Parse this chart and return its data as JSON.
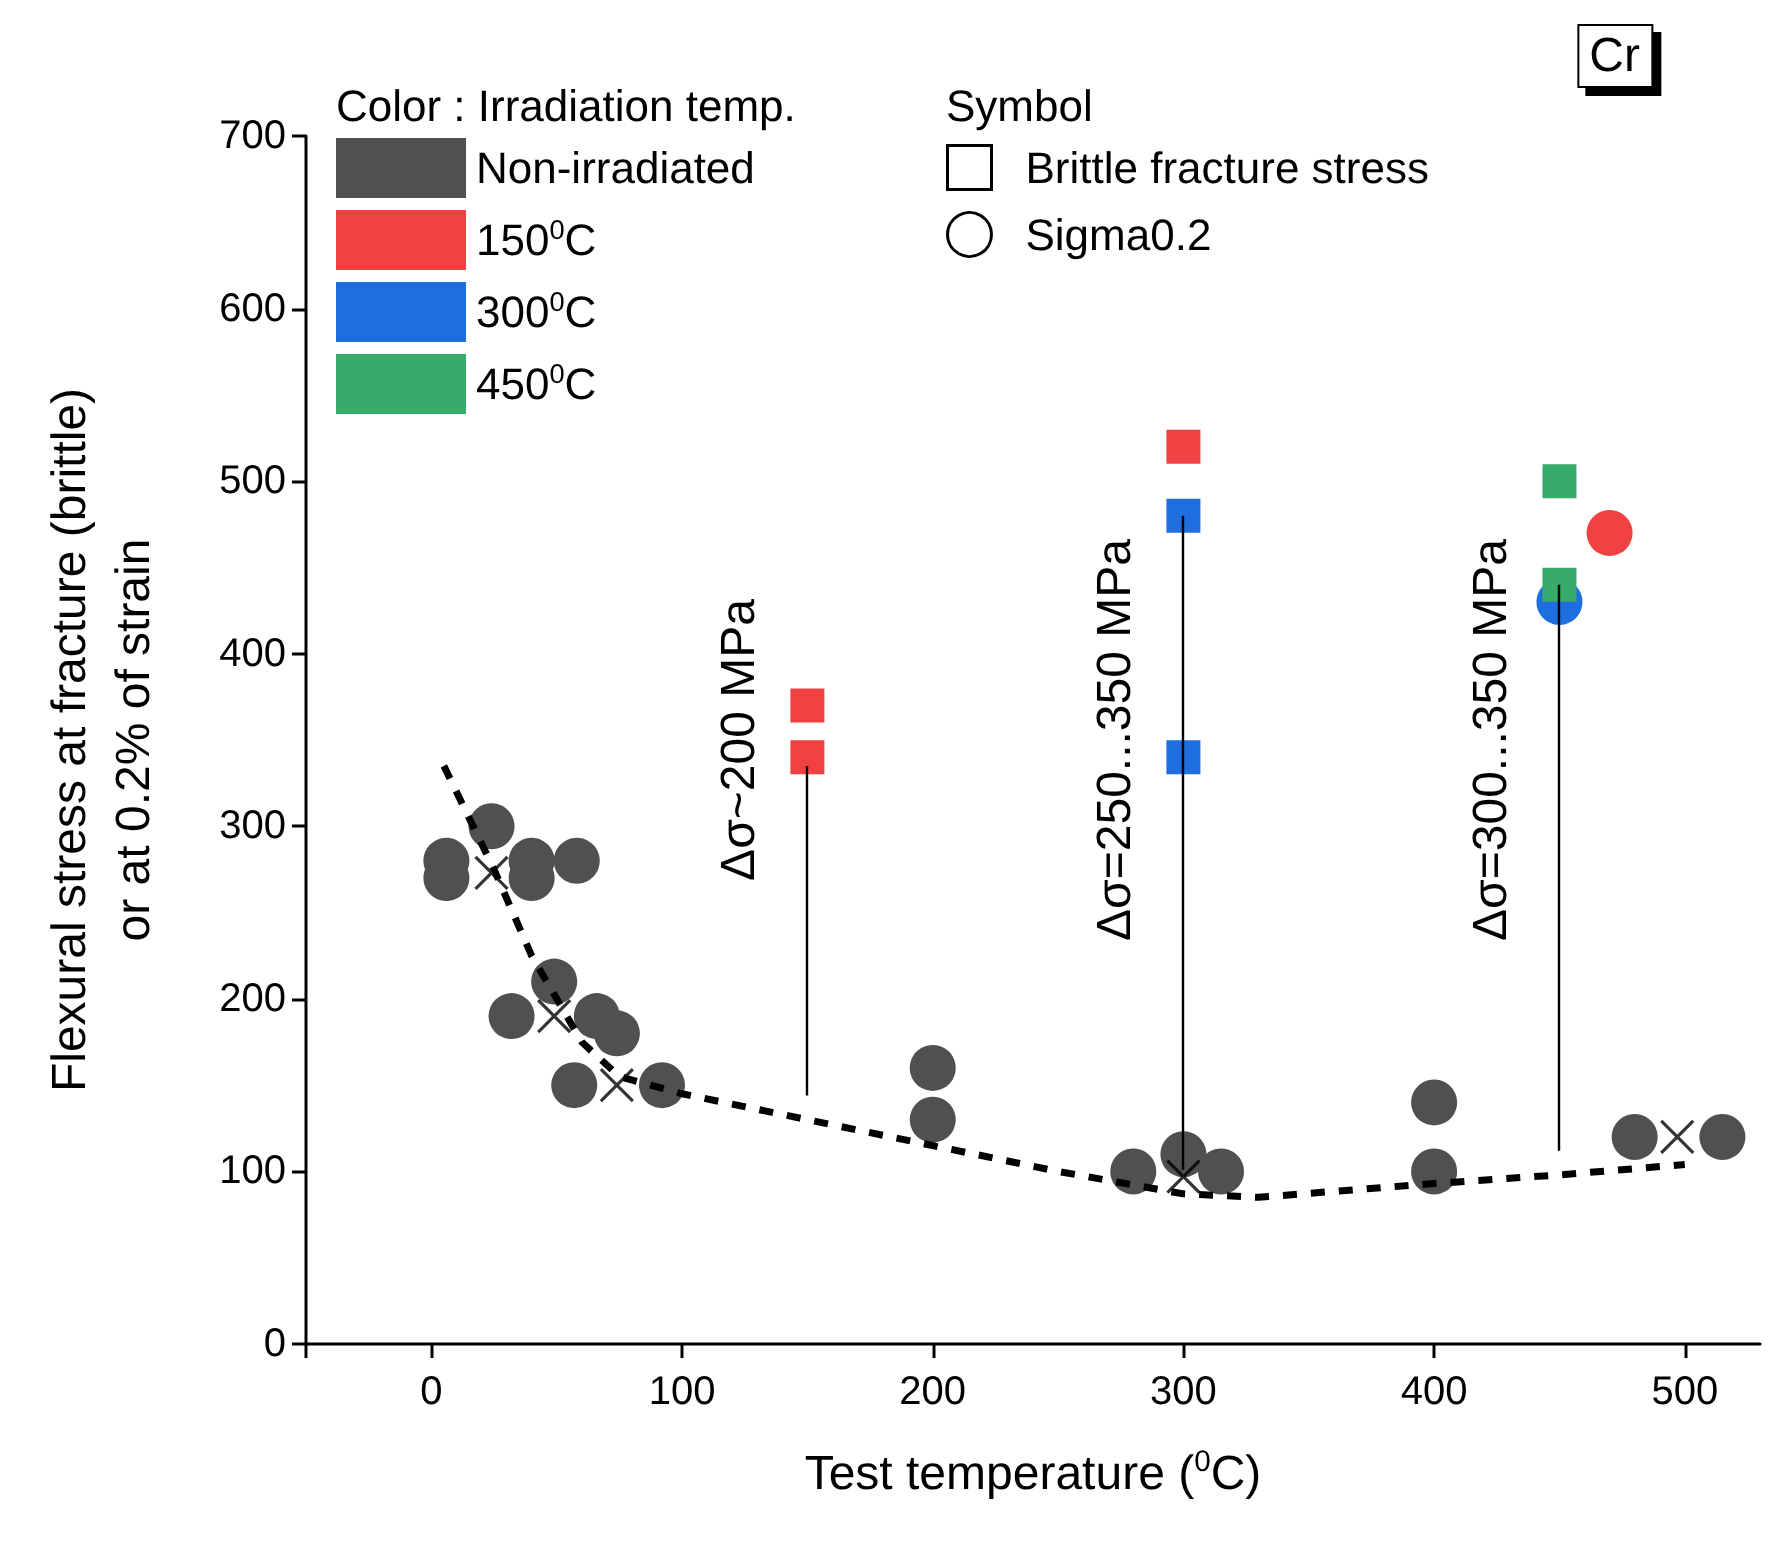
{
  "chart_data": {
    "type": "scatter",
    "title": "Cr",
    "xlabel": "Test temperature ($^{0}$C)",
    "ylabel": "Flexural stress at fracture (brittle)\nor at 0.2% of strain",
    "legend_title": "Color : Irradiation temp.",
    "legend": "top left",
    "xlim": [
      -50,
      530
    ],
    "xticks": [
      {
        "value": -50,
        "label": null
      },
      0,
      100,
      200,
      300,
      400,
      500
    ],
    "ylim": [
      0,
      700
    ],
    "yticks": [
      0,
      100,
      200,
      300,
      400,
      500,
      600,
      700
    ],
    "grid": false,
    "annotations": [
      "Symbol",
      {
        "text": "Δσ~200 MPa",
        "x": 150,
        "y": 335
      },
      {
        "text": "Δσ=250...350 MPa",
        "x": 300,
        "y": 480
      },
      {
        "text": "Δσ=300...350 MPa",
        "x": 450,
        "y": 440
      }
    ],
    "series": [
      {
        "name": "Non-irradiated",
        "color": "#505050",
        "marker": "circle",
        "x": [
          6,
          6,
          24,
          40,
          40,
          58,
          49,
          32,
          66,
          74,
          57,
          92,
          200,
          200,
          280,
          300,
          315,
          400,
          400,
          480,
          515
        ],
        "values": [
          280,
          270,
          300,
          280,
          270,
          280,
          210,
          190,
          190,
          180,
          150,
          150,
          160,
          130,
          100,
          110,
          100,
          140,
          100,
          120,
          120
        ]
      },
      {
        "color": "#000000",
        "marker": "cross",
        "x": [
          24,
          49,
          74,
          300,
          497
        ],
        "values": [
          273,
          190,
          150,
          97,
          120
        ]
      },
      {
        "name": "150$^{0}$C",
        "color": "#f04242",
        "marker": [
          "square",
          "square",
          "square",
          "circle"
        ],
        "x": [
          150,
          150,
          300,
          470
        ],
        "values": [
          370,
          340,
          520,
          470
        ]
      },
      {
        "name": "300$^{0}$C",
        "color": "#1e6ee0",
        "marker": [
          "square",
          "square",
          "circle"
        ],
        "x": [
          300,
          300,
          450
        ],
        "values": [
          480,
          340,
          430
        ]
      },
      {
        "name": "450$^{0}$C",
        "color": "#36ab6a",
        "marker": "square",
        "x": [
          450,
          450
        ],
        "values": [
          500,
          440
        ]
      },
      {
        "name": "Brittle fracture stress",
        "color": "#000000",
        "marker": "square"
      },
      {
        "name": "Sigma0.2",
        "color": "#000000",
        "marker": "circle"
      },
      {
        "type": "line",
        "color": "#000000",
        "line_style": "dashed",
        "marker": "none",
        "x": [
          5,
          15,
          25,
          40,
          50,
          60,
          75,
          100,
          150,
          200,
          250,
          300,
          330,
          400,
          450,
          500
        ],
        "values": [
          335,
          305,
          275,
          225,
          200,
          175,
          155,
          145,
          130,
          115,
          100,
          87,
          85,
          93,
          98,
          104
        ]
      }
    ]
  }
}
